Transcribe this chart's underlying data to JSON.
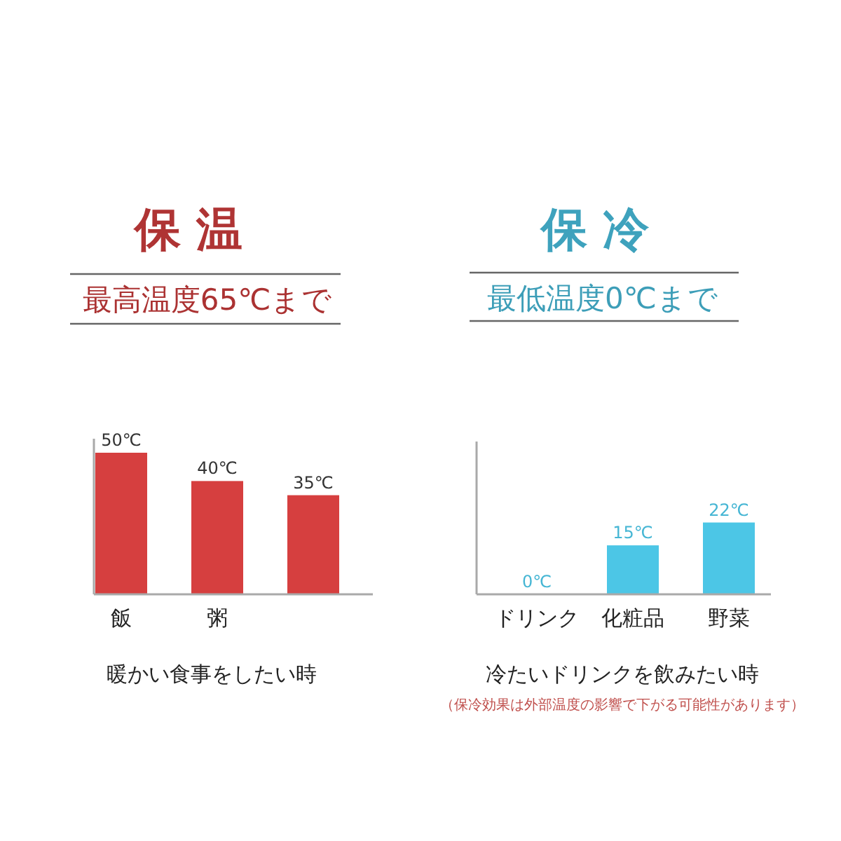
{
  "chart_data": [
    {
      "type": "bar",
      "title": "保温",
      "subtitle": "最高温度65℃まで",
      "categories": [
        "飯",
        "粥",
        null
      ],
      "values": [
        50,
        40,
        35
      ],
      "value_labels": [
        "50℃",
        "40℃",
        "35℃"
      ],
      "color": "#d63f3f",
      "tick_labels": "x",
      "xlabel": "暖かい食事をしたい時"
    },
    {
      "type": "bar",
      "title": "保冷",
      "subtitle": "最低温度0℃まで",
      "categories": [
        "ドリンク",
        "化粧品",
        "野菜"
      ],
      "values": [
        0,
        15,
        22
      ],
      "value_labels": [
        "0℃",
        "15℃",
        "22℃"
      ],
      "color": "#4cc6e6",
      "tick_labels": "x",
      "xlabel": "冷たいドリンクを飲みたい時",
      "annotations": [
        "（保冷効果は外部温度の影響で下がる可能性があります）"
      ]
    }
  ]
}
